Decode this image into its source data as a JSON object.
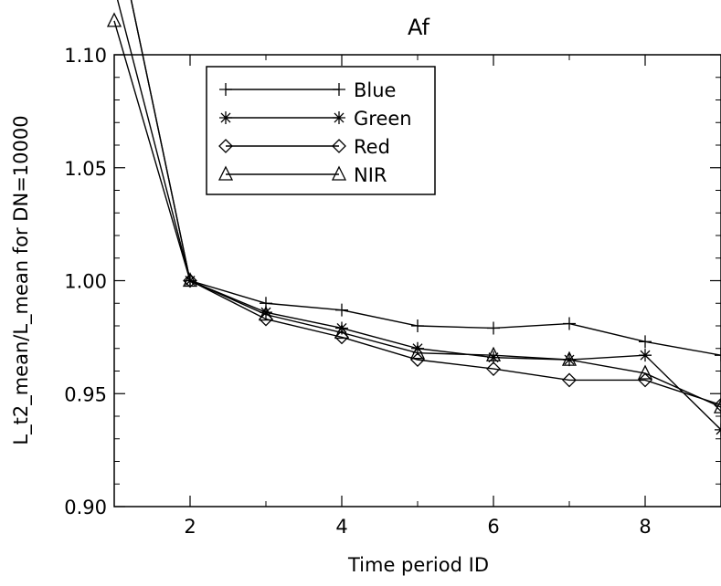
{
  "chart_data": {
    "type": "line",
    "title": "Af",
    "xlabel": "Time period ID",
    "ylabel": "L_t2_mean/L_mean for DN=10000",
    "xlim": [
      1,
      9
    ],
    "ylim": [
      0.9,
      1.1
    ],
    "x_ticks": [
      2,
      4,
      6,
      8
    ],
    "x_tick_labels": [
      "2",
      "4",
      "6",
      "8"
    ],
    "y_ticks": [
      0.9,
      0.95,
      1.0,
      1.05,
      1.1
    ],
    "y_tick_labels": [
      "0.90",
      "0.95",
      "1.00",
      "1.05",
      "1.10"
    ],
    "grid": false,
    "legend_position": "top-left",
    "series": [
      {
        "name": "Blue",
        "marker": "plus",
        "x": [
          1,
          2,
          3,
          4,
          5,
          6,
          7,
          8,
          9
        ],
        "values": [
          1.16,
          1.0,
          0.99,
          0.987,
          0.98,
          0.979,
          0.981,
          0.973,
          0.967
        ]
      },
      {
        "name": "Green",
        "marker": "asterisk",
        "x": [
          1,
          2,
          3,
          4,
          5,
          6,
          7,
          8,
          9
        ],
        "values": [
          1.16,
          1.0,
          0.986,
          0.979,
          0.97,
          0.966,
          0.965,
          0.967,
          0.934
        ]
      },
      {
        "name": "Red",
        "marker": "diamond",
        "x": [
          1,
          2,
          3,
          4,
          5,
          6,
          7,
          8,
          9
        ],
        "values": [
          1.13,
          1.0,
          0.983,
          0.975,
          0.965,
          0.961,
          0.956,
          0.956,
          0.945
        ]
      },
      {
        "name": "NIR",
        "marker": "triangle",
        "x": [
          1,
          2,
          3,
          4,
          5,
          6,
          7,
          8,
          9
        ],
        "values": [
          1.115,
          1.0,
          0.985,
          0.977,
          0.968,
          0.967,
          0.965,
          0.959,
          0.944
        ]
      }
    ]
  }
}
